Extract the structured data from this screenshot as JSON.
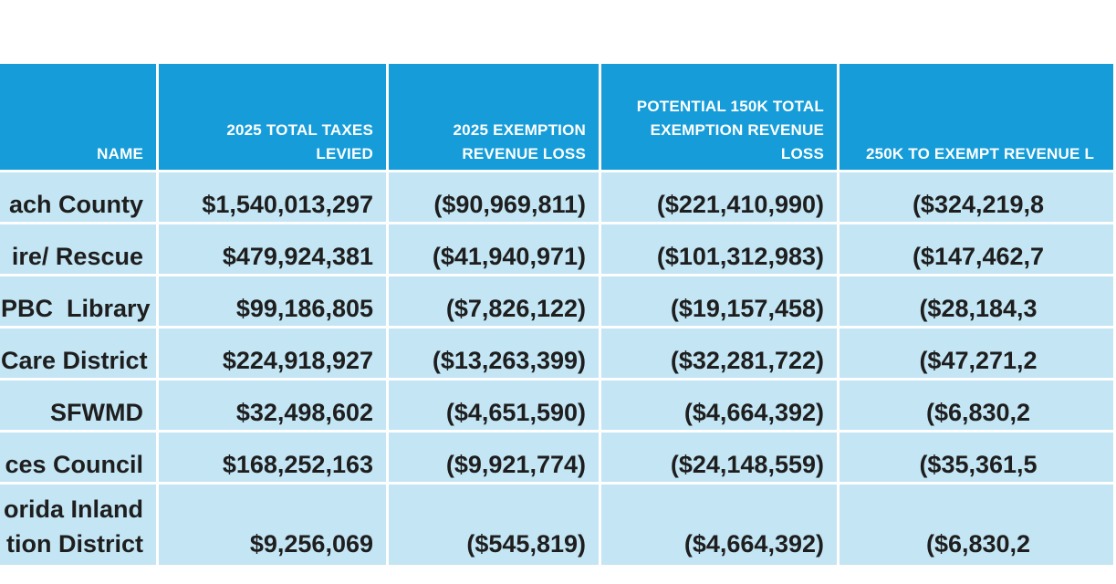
{
  "headers": [
    "NAME",
    "2025 TOTAL TAXES LEVIED",
    "2025 EXEMPTION REVENUE LOSS",
    "POTENTIAL 150K TOTAL EXEMPTION REVENUE LOSS",
    "250K TO EXEMPT REVENUE L"
  ],
  "rows": [
    {
      "name": "ach County",
      "taxes": "$1,540,013,297",
      "exemption_loss": "($90,969,811)",
      "loss_150k": "($221,410,990)",
      "loss_250k": "($324,219,8"
    },
    {
      "name": "ire/ Rescue",
      "taxes": "$479,924,381",
      "exemption_loss": "($41,940,971)",
      "loss_150k": "($101,312,983)",
      "loss_250k": "($147,462,7"
    },
    {
      "name": "PBC  Library",
      "taxes": "$99,186,805",
      "exemption_loss": "($7,826,122)",
      "loss_150k": "($19,157,458)",
      "loss_250k": "($28,184,3"
    },
    {
      "name": "Care District",
      "taxes": "$224,918,927",
      "exemption_loss": "($13,263,399)",
      "loss_150k": "($32,281,722)",
      "loss_250k": "($47,271,2"
    },
    {
      "name": "SFWMD",
      "taxes": "$32,498,602",
      "exemption_loss": "($4,651,590)",
      "loss_150k": "($4,664,392)",
      "loss_250k": "($6,830,2"
    },
    {
      "name": "ces Council",
      "taxes": "$168,252,163",
      "exemption_loss": "($9,921,774)",
      "loss_150k": "($24,148,559)",
      "loss_250k": "($35,361,5"
    },
    {
      "name": "orida Inland tion District",
      "name_line1": "orida Inland",
      "name_line2": "tion District",
      "taxes": "$9,256,069",
      "exemption_loss": "($545,819)",
      "loss_150k": "($4,664,392)",
      "loss_250k": "($6,830,2"
    }
  ],
  "colors": {
    "header_bg": "#169dd9",
    "cell_bg": "#c3e5f4",
    "header_text": "#ffffff",
    "cell_text": "#1e1e1e"
  }
}
